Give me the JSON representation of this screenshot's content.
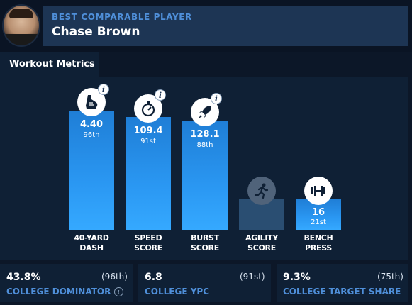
{
  "header": {
    "kicker": "BEST COMPARABLE PLAYER",
    "player_name": "Chase Brown"
  },
  "tab": {
    "label": "Workout Metrics"
  },
  "metrics": [
    {
      "label_line1": "40-YARD",
      "label_line2": "DASH",
      "value": "4.40",
      "rank": "96th",
      "percentile": 96,
      "icon": "running-shoe-icon",
      "has_info": true
    },
    {
      "label_line1": "SPEED",
      "label_line2": "SCORE",
      "value": "109.4",
      "rank": "91st",
      "percentile": 91,
      "icon": "stopwatch-icon",
      "has_info": true
    },
    {
      "label_line1": "BURST",
      "label_line2": "SCORE",
      "value": "128.1",
      "rank": "88th",
      "percentile": 88,
      "icon": "rocket-icon",
      "has_info": true
    },
    {
      "label_line1": "AGILITY",
      "label_line2": "SCORE",
      "value": "",
      "rank": "",
      "percentile": null,
      "icon": "runner-icon",
      "has_info": false
    },
    {
      "label_line1": "BENCH",
      "label_line2": "PRESS",
      "value": "16",
      "rank": "21st",
      "percentile": 21,
      "icon": "dumbbell-icon",
      "has_info": false
    }
  ],
  "stats": [
    {
      "value": "43.8%",
      "rank": "(96th)",
      "label": "COLLEGE DOMINATOR",
      "has_info": true
    },
    {
      "value": "6.8",
      "rank": "(91st)",
      "label": "COLLEGE YPC",
      "has_info": false
    },
    {
      "value": "9.3%",
      "rank": "(75th)",
      "label": "COLLEGE TARGET SHARE",
      "has_info": false
    }
  ],
  "colors": {
    "background": "#0c1728",
    "panel": "#0f2035",
    "header_band": "#1d3554",
    "accent_text": "#4f8fd9",
    "bar": "#2a97f2",
    "bar_empty": "#2a4e72"
  }
}
